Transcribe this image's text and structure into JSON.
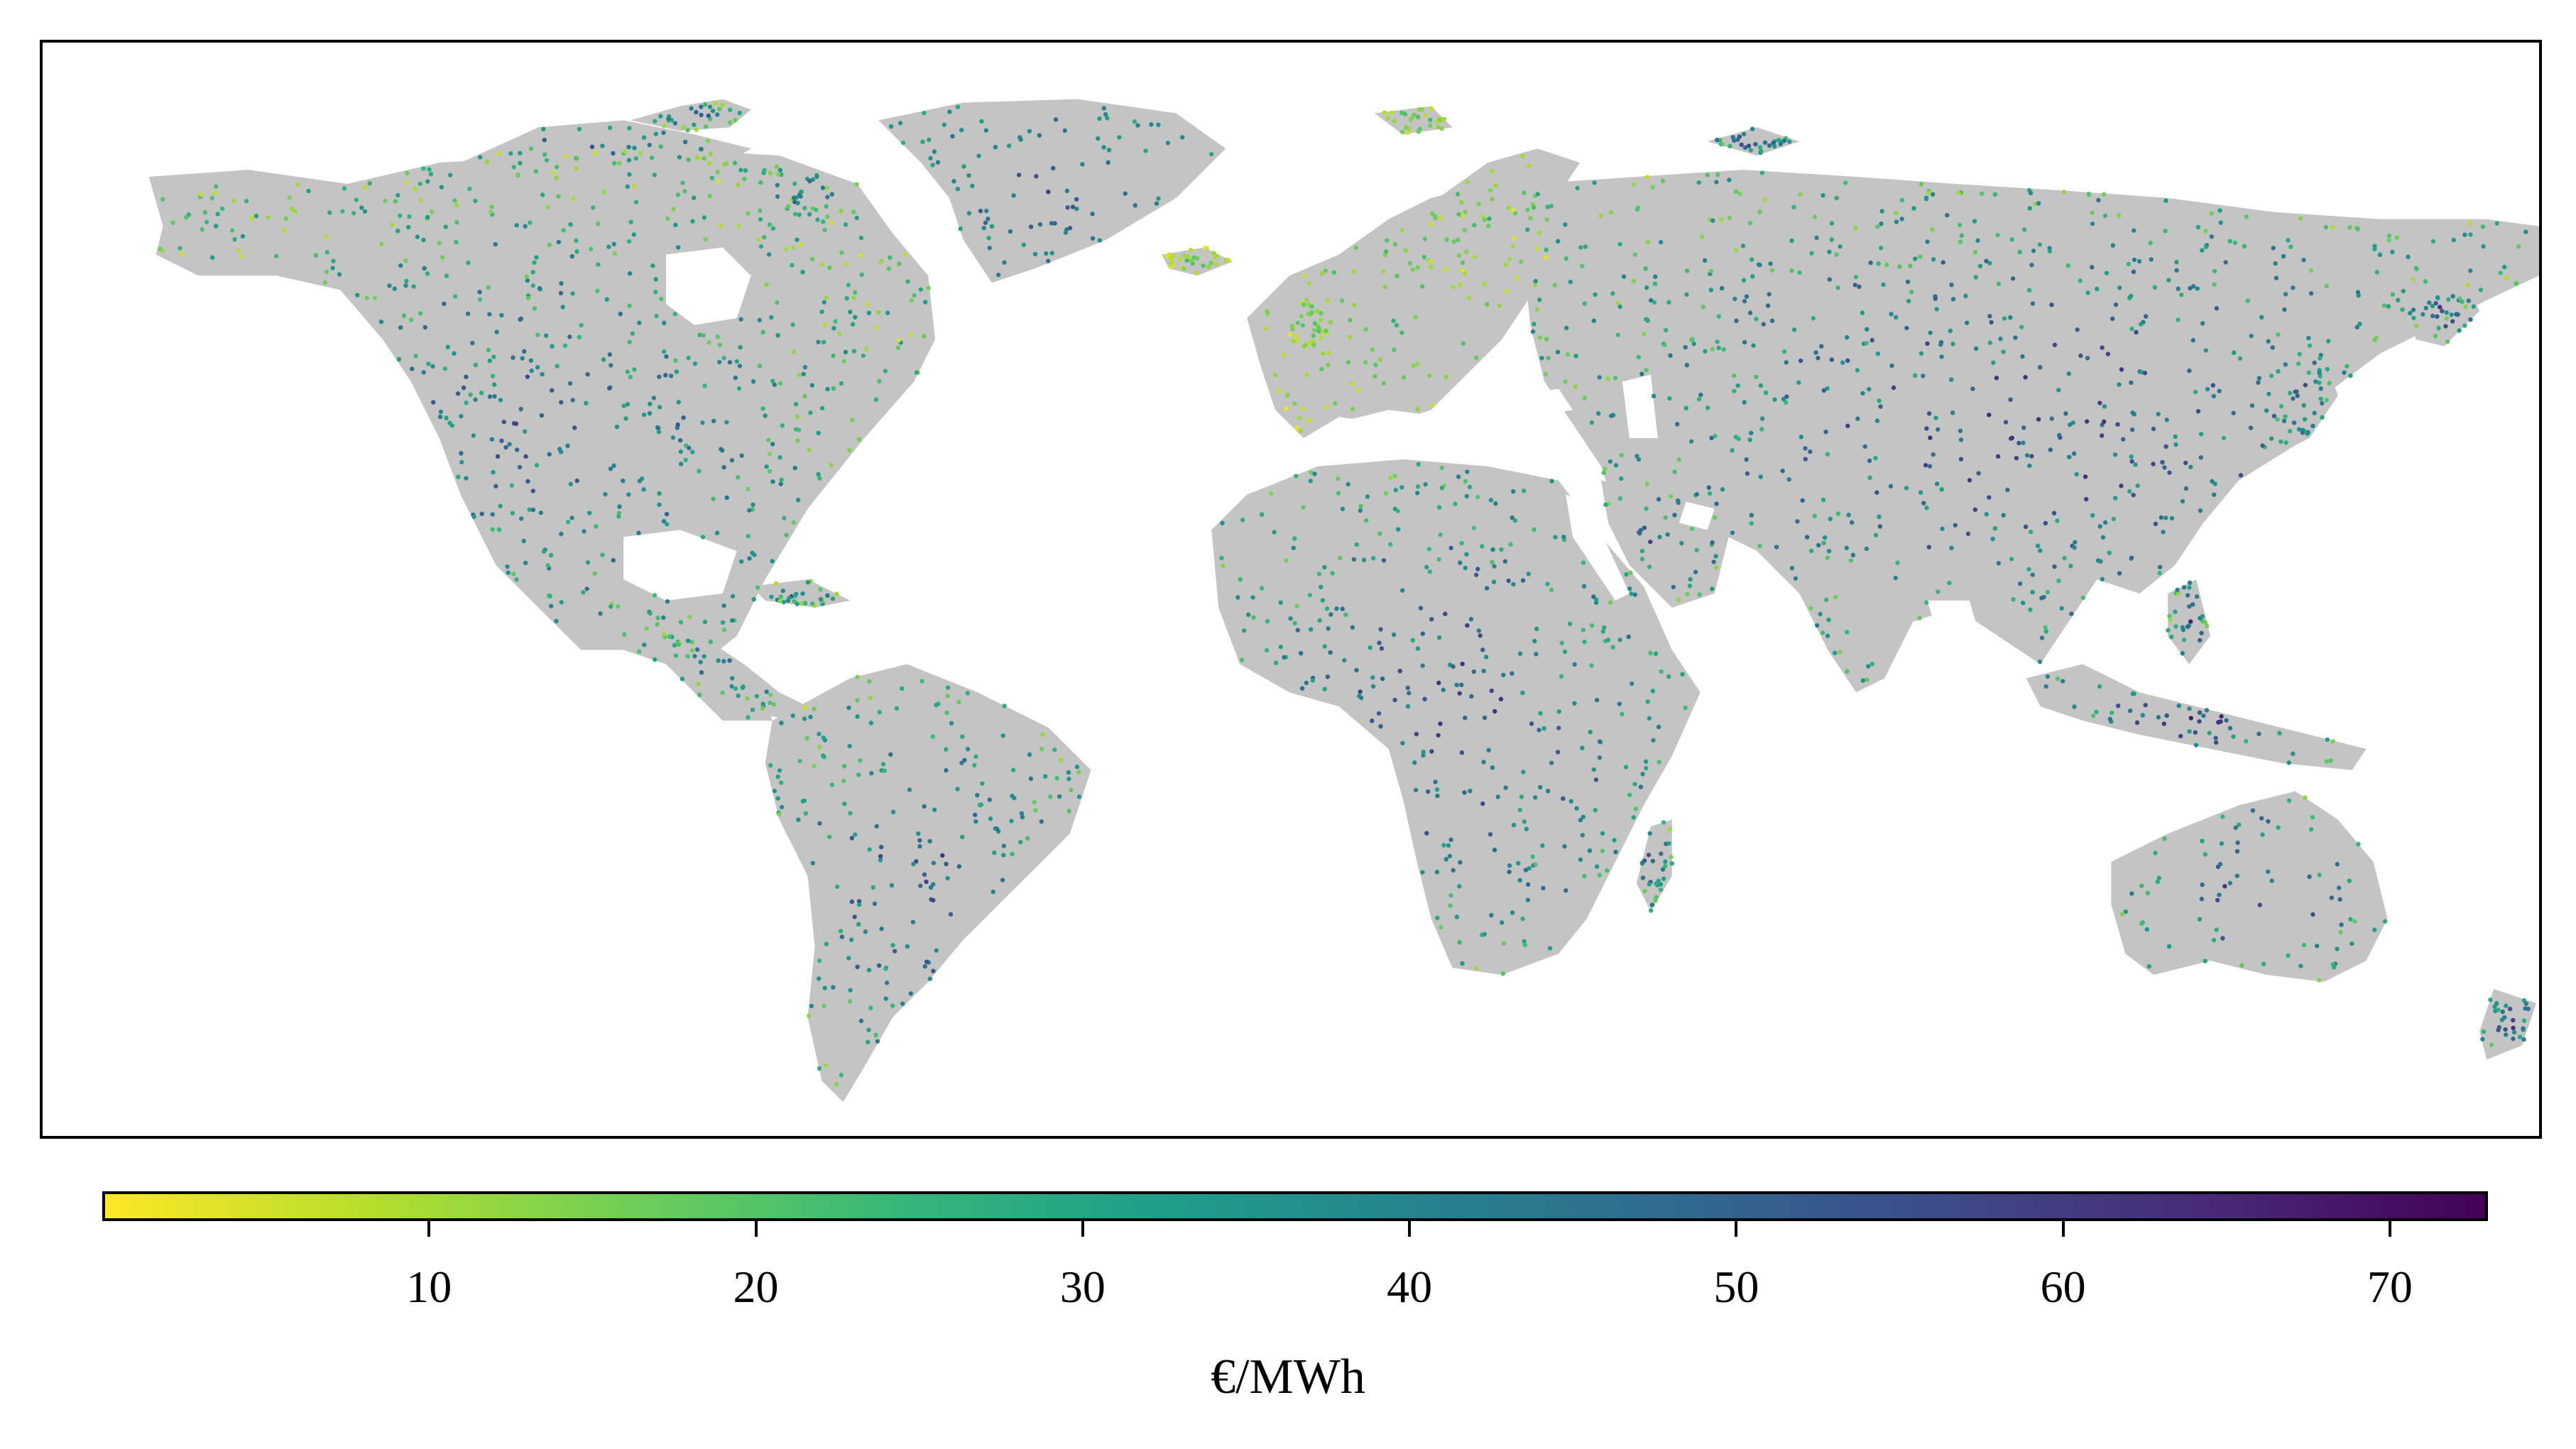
{
  "map": {
    "land_color": "#c4c4c4",
    "marker": "site-point",
    "regions": [
      {
        "name": "Greenland",
        "min": 25,
        "max": 55
      },
      {
        "name": "North America",
        "min": 3,
        "max": 55
      },
      {
        "name": "South America",
        "min": 10,
        "max": 60
      },
      {
        "name": "Europe",
        "min": 1,
        "max": 25
      },
      {
        "name": "Africa",
        "min": 10,
        "max": 62
      },
      {
        "name": "Asia",
        "min": 8,
        "max": 62
      },
      {
        "name": "Australia",
        "min": 12,
        "max": 62
      }
    ]
  },
  "colorbar": {
    "colormap": "viridis_r",
    "min": 0,
    "max": 73,
    "ticks": [
      "10",
      "20",
      "30",
      "40",
      "50",
      "60",
      "70"
    ],
    "tick_values": [
      10,
      20,
      30,
      40,
      50,
      60,
      70
    ],
    "label": "€/MWh"
  }
}
